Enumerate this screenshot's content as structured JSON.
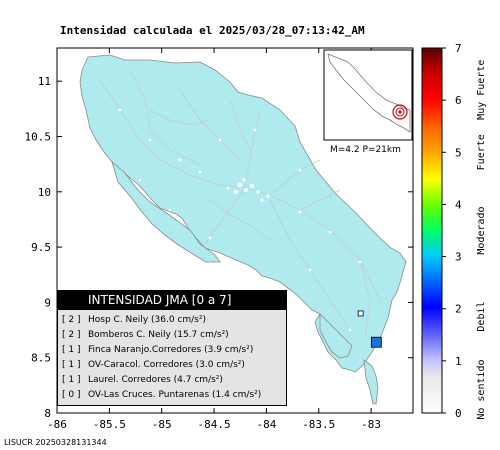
{
  "title": "Intensidad calculada el 2025/03/28_07:13:42_AM",
  "footer": "LISUCR 20250328131344",
  "inset_label": "M=4.2 P=21km",
  "axes": {
    "x_ticks": [
      "-86",
      "-85.5",
      "-85",
      "-84.5",
      "-84",
      "-83.5",
      "-83"
    ],
    "y_ticks": [
      "11",
      "10.5",
      "10",
      "9.5",
      "9",
      "8.5",
      "8"
    ],
    "xlim": [
      -86,
      -82.6
    ],
    "ylim": [
      8,
      11.3
    ]
  },
  "colorbar": {
    "ticks": [
      "0",
      "1",
      "2",
      "3",
      "4",
      "5",
      "6",
      "7"
    ],
    "labels": [
      "No sentido",
      "Debil",
      "Moderado",
      "Fuerte",
      "Muy Fuerte"
    ],
    "range": [
      0,
      7
    ]
  },
  "legend": {
    "header": "INTENSIDAD JMA [0 a 7]",
    "entries": [
      {
        "level": "[ 2 ]",
        "text": "Hosp C. Neily (36.0 cm/s²)"
      },
      {
        "level": "[ 2 ]",
        "text": "Bomberos C. Neily (15.7 cm/s²)"
      },
      {
        "level": "[ 1 ]",
        "text": "Finca Naranjo.Corredores (3.9 cm/s²)"
      },
      {
        "level": "[ 1 ]",
        "text": "OV-Caracol. Corredores (3.0 cm/s²)"
      },
      {
        "level": "[ 1 ]",
        "text": "Laurel. Corredores (4.7 cm/s²)"
      },
      {
        "level": "[ 0 ]",
        "text": "OV-Las Cruces. Puntarenas (1.4 cm/s²)"
      }
    ]
  },
  "stations": [
    {
      "lon": -82.95,
      "lat": 8.64,
      "intensity": 2
    },
    {
      "lon": -83.1,
      "lat": 8.9,
      "intensity": 0
    }
  ],
  "colors": {
    "land": "#aeeaee",
    "land_stroke": "#8a8a8a",
    "roads": "#c8c8c8",
    "station_2": "#1e6fe0",
    "epicenter": "#e00000"
  }
}
